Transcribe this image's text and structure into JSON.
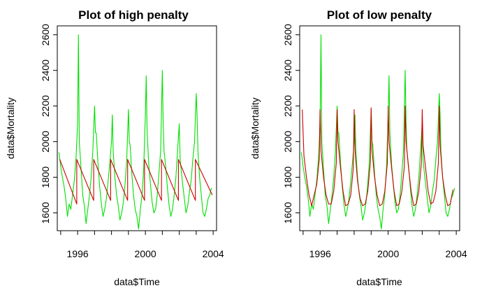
{
  "chart_data": [
    {
      "type": "line",
      "title": "Plot of high penalty",
      "xlabel": "data$Time",
      "ylabel": "data$Mortality",
      "xlim": [
        1994.8,
        2004.2
      ],
      "ylim": [
        1500,
        2650
      ],
      "xticks": [
        "1996",
        "2000",
        "2004"
      ],
      "yticks": [
        "1600",
        "1800",
        "2000",
        "2200",
        "2400",
        "2600"
      ],
      "grid": false,
      "series": [
        {
          "color": "#00e000",
          "x": [
            1994.9,
            1995.0,
            1995.1,
            1995.2,
            1995.3,
            1995.4,
            1995.5,
            1995.6,
            1995.7,
            1995.8,
            1995.9,
            1996.0,
            1996.05,
            1996.1,
            1996.2,
            1996.3,
            1996.4,
            1996.5,
            1996.6,
            1996.7,
            1996.8,
            1996.9,
            1997.0,
            1997.05,
            1997.1,
            1997.2,
            1997.3,
            1997.4,
            1997.5,
            1997.6,
            1997.7,
            1997.8,
            1997.9,
            1998.0,
            1998.05,
            1998.1,
            1998.2,
            1998.3,
            1998.4,
            1998.5,
            1998.6,
            1998.7,
            1998.8,
            1998.9,
            1999.0,
            1999.05,
            1999.1,
            1999.2,
            1999.3,
            1999.4,
            1999.5,
            1999.6,
            1999.7,
            1999.8,
            1999.9,
            2000.0,
            2000.05,
            2000.1,
            2000.2,
            2000.3,
            2000.4,
            2000.5,
            2000.6,
            2000.7,
            2000.8,
            2000.9,
            2001.0,
            2001.05,
            2001.1,
            2001.2,
            2001.3,
            2001.4,
            2001.5,
            2001.6,
            2001.7,
            2001.8,
            2001.9,
            2002.0,
            2002.05,
            2002.1,
            2002.2,
            2002.3,
            2002.4,
            2002.5,
            2002.6,
            2002.7,
            2002.8,
            2002.9,
            2003.0,
            2003.05,
            2003.1,
            2003.2,
            2003.3,
            2003.4,
            2003.5,
            2003.6,
            2003.7,
            2003.8,
            2003.9
          ],
          "values": [
            1940,
            1860,
            1800,
            1750,
            1680,
            1580,
            1650,
            1620,
            1700,
            1780,
            1900,
            2100,
            2600,
            2000,
            1850,
            1700,
            1640,
            1540,
            1620,
            1700,
            1800,
            1950,
            2200,
            2050,
            2050,
            1880,
            1750,
            1650,
            1580,
            1620,
            1680,
            1780,
            1880,
            2000,
            2150,
            1950,
            1800,
            1700,
            1640,
            1560,
            1600,
            1660,
            1760,
            1900,
            2180,
            2000,
            1980,
            1820,
            1700,
            1620,
            1580,
            1510,
            1620,
            1700,
            1850,
            2150,
            2370,
            2050,
            1870,
            1760,
            1660,
            1600,
            1620,
            1700,
            1820,
            1950,
            2400,
            2100,
            1950,
            1860,
            1740,
            1640,
            1580,
            1620,
            1700,
            1800,
            1950,
            2100,
            1900,
            1850,
            1760,
            1680,
            1600,
            1640,
            1720,
            1780,
            1900,
            2000,
            2270,
            2150,
            1950,
            1800,
            1700,
            1600,
            1580,
            1620,
            1680,
            1700,
            1740
          ]
        },
        {
          "color": "#cc0000",
          "x": [
            1994.95,
            1995.95,
            1995.95,
            1996.95,
            1996.95,
            1997.95,
            1997.95,
            1998.95,
            1998.95,
            1999.95,
            1999.95,
            2000.95,
            2000.95,
            2001.95,
            2001.95,
            2002.95,
            2002.95,
            2003.95
          ],
          "values": [
            1900,
            1650,
            1900,
            1670,
            1900,
            1670,
            1900,
            1670,
            1900,
            1670,
            1900,
            1670,
            1900,
            1670,
            1900,
            1670,
            1900,
            1700
          ]
        }
      ]
    },
    {
      "type": "line",
      "title": "Plot of low penalty",
      "xlabel": "data$Time",
      "ylabel": "data$Mortality",
      "xlim": [
        1994.8,
        2004.2
      ],
      "ylim": [
        1500,
        2650
      ],
      "xticks": [
        "1996",
        "2000",
        "2004"
      ],
      "yticks": [
        "1600",
        "1800",
        "2000",
        "2200",
        "2400",
        "2600"
      ],
      "grid": false,
      "series": [
        {
          "color": "#00e000",
          "x": [
            1994.9,
            1995.0,
            1995.1,
            1995.2,
            1995.3,
            1995.4,
            1995.5,
            1995.6,
            1995.7,
            1995.8,
            1995.9,
            1996.0,
            1996.05,
            1996.1,
            1996.2,
            1996.3,
            1996.4,
            1996.5,
            1996.6,
            1996.7,
            1996.8,
            1996.9,
            1997.0,
            1997.05,
            1997.1,
            1997.2,
            1997.3,
            1997.4,
            1997.5,
            1997.6,
            1997.7,
            1997.8,
            1997.9,
            1998.0,
            1998.05,
            1998.1,
            1998.2,
            1998.3,
            1998.4,
            1998.5,
            1998.6,
            1998.7,
            1998.8,
            1998.9,
            1999.0,
            1999.05,
            1999.1,
            1999.2,
            1999.3,
            1999.4,
            1999.5,
            1999.6,
            1999.7,
            1999.8,
            1999.9,
            2000.0,
            2000.05,
            2000.1,
            2000.2,
            2000.3,
            2000.4,
            2000.5,
            2000.6,
            2000.7,
            2000.8,
            2000.9,
            2001.0,
            2001.05,
            2001.1,
            2001.2,
            2001.3,
            2001.4,
            2001.5,
            2001.6,
            2001.7,
            2001.8,
            2001.9,
            2002.0,
            2002.05,
            2002.1,
            2002.2,
            2002.3,
            2002.4,
            2002.5,
            2002.6,
            2002.7,
            2002.8,
            2002.9,
            2003.0,
            2003.05,
            2003.1,
            2003.2,
            2003.3,
            2003.4,
            2003.5,
            2003.6,
            2003.7,
            2003.8,
            2003.9
          ],
          "values": [
            1940,
            1860,
            1800,
            1750,
            1680,
            1580,
            1650,
            1620,
            1700,
            1780,
            1900,
            2100,
            2600,
            2000,
            1850,
            1700,
            1640,
            1540,
            1620,
            1700,
            1800,
            1950,
            2200,
            2050,
            2050,
            1880,
            1750,
            1650,
            1580,
            1620,
            1680,
            1780,
            1880,
            2000,
            2150,
            1950,
            1800,
            1700,
            1640,
            1560,
            1600,
            1660,
            1760,
            1900,
            2180,
            2000,
            1980,
            1820,
            1700,
            1620,
            1580,
            1510,
            1620,
            1700,
            1850,
            2150,
            2370,
            2050,
            1870,
            1760,
            1660,
            1600,
            1620,
            1700,
            1820,
            1950,
            2400,
            2100,
            1950,
            1860,
            1740,
            1640,
            1580,
            1620,
            1700,
            1800,
            1950,
            2100,
            1900,
            1850,
            1760,
            1680,
            1600,
            1640,
            1720,
            1780,
            1900,
            2000,
            2270,
            2150,
            1950,
            1800,
            1700,
            1600,
            1580,
            1620,
            1680,
            1700,
            1740
          ]
        },
        {
          "color": "#cc0000",
          "x": [
            1994.95,
            1995.05,
            1995.2,
            1995.35,
            1995.5,
            1995.65,
            1995.8,
            1995.95,
            1996.0,
            1996.05,
            1996.2,
            1996.35,
            1996.5,
            1996.65,
            1996.8,
            1996.95,
            1997.0,
            1997.05,
            1997.2,
            1997.35,
            1997.5,
            1997.65,
            1997.8,
            1997.95,
            1998.0,
            1998.05,
            1998.2,
            1998.35,
            1998.5,
            1998.65,
            1998.8,
            1998.95,
            1999.0,
            1999.05,
            1999.2,
            1999.35,
            1999.5,
            1999.65,
            1999.8,
            1999.95,
            2000.0,
            2000.05,
            2000.2,
            2000.35,
            2000.5,
            2000.65,
            2000.8,
            2000.95,
            2001.0,
            2001.05,
            2001.2,
            2001.35,
            2001.5,
            2001.65,
            2001.8,
            2001.95,
            2002.0,
            2002.05,
            2002.2,
            2002.35,
            2002.5,
            2002.65,
            2002.8,
            2002.95,
            2003.0,
            2003.05,
            2003.2,
            2003.35,
            2003.5,
            2003.65,
            2003.8
          ],
          "values": [
            2180,
            1920,
            1800,
            1700,
            1640,
            1700,
            1760,
            1900,
            2180,
            1950,
            1800,
            1700,
            1650,
            1650,
            1720,
            1880,
            2180,
            2000,
            1850,
            1720,
            1640,
            1650,
            1700,
            1850,
            2180,
            1950,
            1780,
            1680,
            1640,
            1650,
            1720,
            1880,
            2190,
            1950,
            1800,
            1700,
            1640,
            1650,
            1720,
            1880,
            2200,
            2000,
            1850,
            1720,
            1640,
            1650,
            1720,
            1860,
            2200,
            2000,
            1850,
            1720,
            1640,
            1650,
            1720,
            1880,
            2180,
            1980,
            1850,
            1720,
            1650,
            1660,
            1720,
            1880,
            2200,
            1980,
            1800,
            1700,
            1640,
            1650,
            1730
          ]
        }
      ]
    }
  ]
}
